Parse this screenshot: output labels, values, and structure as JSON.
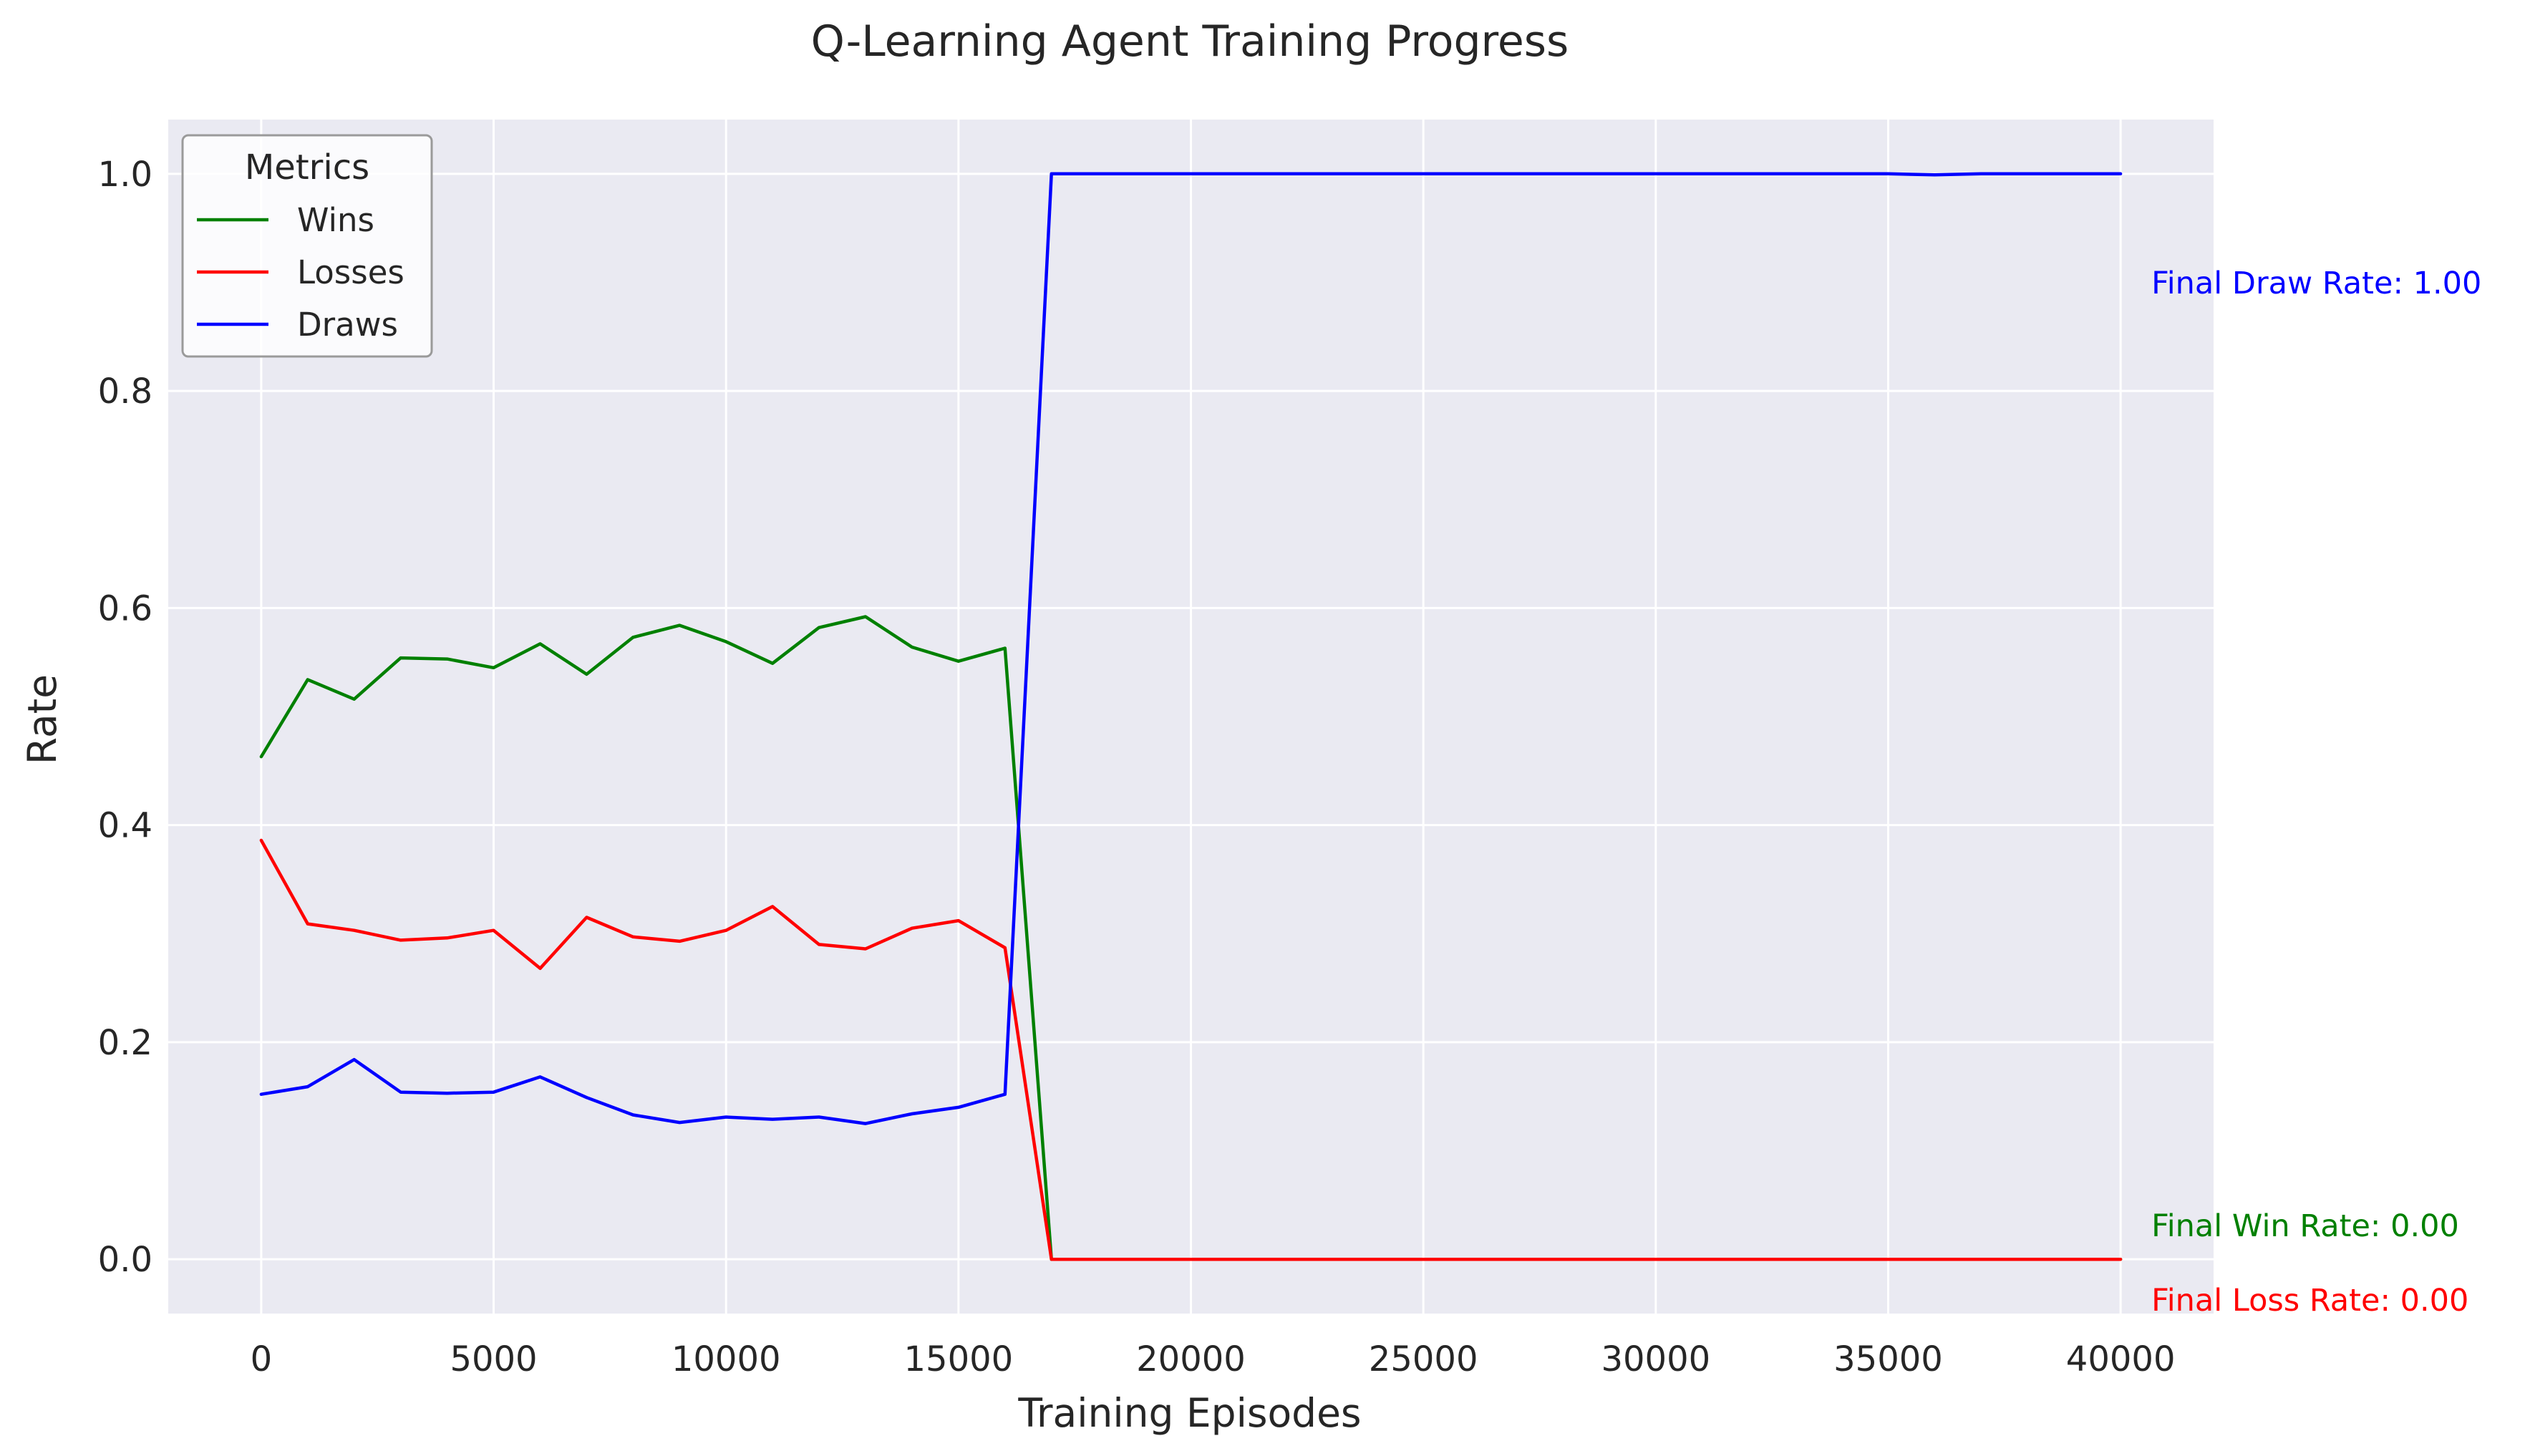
{
  "chart_data": {
    "type": "line",
    "title": "Q-Learning Agent Training Progress",
    "xlabel": "Training Episodes",
    "ylabel": "Rate",
    "xlim": [
      -2000,
      42000
    ],
    "ylim": [
      -0.05,
      1.05
    ],
    "xticks": [
      0,
      5000,
      10000,
      15000,
      20000,
      25000,
      30000,
      35000,
      40000
    ],
    "yticks": [
      0.0,
      0.2,
      0.4,
      0.6,
      0.8,
      1.0
    ],
    "ytick_labels": [
      "0.0",
      "0.2",
      "0.4",
      "0.6",
      "0.8",
      "1.0"
    ],
    "grid": true,
    "legend": {
      "title": "Metrics",
      "placement": "upper-left"
    },
    "x": [
      0,
      1000,
      2000,
      3000,
      4000,
      5000,
      6000,
      7000,
      8000,
      9000,
      10000,
      11000,
      12000,
      13000,
      14000,
      15000,
      16000,
      17000,
      18000,
      19000,
      20000,
      21000,
      22000,
      23000,
      24000,
      25000,
      26000,
      27000,
      28000,
      29000,
      30000,
      31000,
      32000,
      33000,
      34000,
      35000,
      36000,
      37000,
      38000,
      39000,
      40000
    ],
    "series": [
      {
        "name": "Wins",
        "color": "#008000",
        "values": [
          0.463,
          0.534,
          0.516,
          0.554,
          0.553,
          0.545,
          0.567,
          0.539,
          0.573,
          0.584,
          0.569,
          0.549,
          0.582,
          0.592,
          0.564,
          0.551,
          0.563,
          0.0,
          0.0,
          0.0,
          0.0,
          0.0,
          0.0,
          0.0,
          0.0,
          0.0,
          0.0,
          0.0,
          0.0,
          0.0,
          0.0,
          0.0,
          0.0,
          0.0,
          0.0,
          0.0,
          0.0,
          0.0,
          0.0,
          0.0,
          0.0
        ]
      },
      {
        "name": "Losses",
        "color": "#ff0000",
        "values": [
          0.386,
          0.309,
          0.303,
          0.294,
          0.296,
          0.303,
          0.268,
          0.315,
          0.297,
          0.293,
          0.303,
          0.325,
          0.29,
          0.286,
          0.305,
          0.312,
          0.287,
          0.0,
          0.0,
          0.0,
          0.0,
          0.0,
          0.0,
          0.0,
          0.0,
          0.0,
          0.0,
          0.0,
          0.0,
          0.0,
          0.0,
          0.0,
          0.0,
          0.0,
          0.0,
          0.0,
          0.0,
          0.0,
          0.0,
          0.0,
          0.0
        ]
      },
      {
        "name": "Draws",
        "color": "#0000ff",
        "values": [
          0.152,
          0.159,
          0.184,
          0.154,
          0.153,
          0.154,
          0.168,
          0.149,
          0.133,
          0.126,
          0.131,
          0.129,
          0.131,
          0.125,
          0.134,
          0.14,
          0.152,
          1.0,
          1.0,
          1.0,
          1.0,
          1.0,
          1.0,
          1.0,
          1.0,
          1.0,
          1.0,
          1.0,
          1.0,
          1.0,
          1.0,
          1.0,
          1.0,
          1.0,
          1.0,
          1.0,
          0.999,
          1.0,
          1.0,
          1.0,
          1.0
        ]
      }
    ],
    "annotations": [
      {
        "text": "Final Draw Rate: 1.00",
        "color": "#0000ff",
        "y": 1.0
      },
      {
        "text": "Final Win Rate: 0.00",
        "color": "#008000",
        "y": 0.0
      },
      {
        "text": "Final Loss Rate: 0.00",
        "color": "#ff0000",
        "y": 0.0
      }
    ]
  }
}
